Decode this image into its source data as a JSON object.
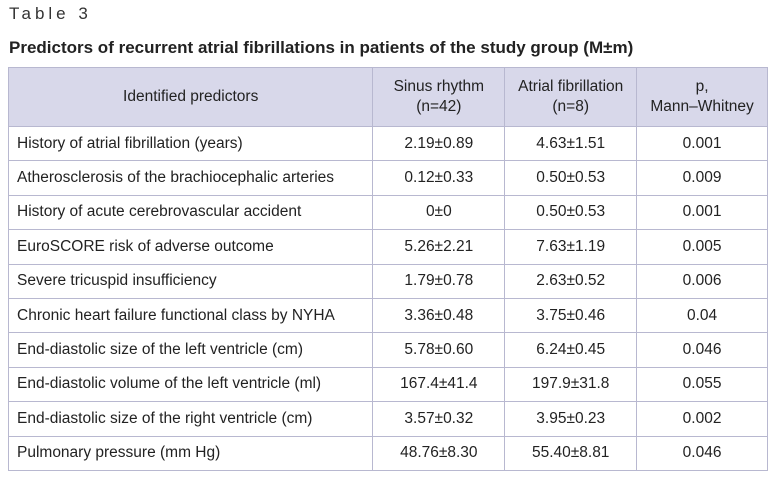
{
  "header": {
    "label": "Table 3",
    "title": "Predictors of recurrent atrial fibrillations in patients of the study group (M±m)"
  },
  "table": {
    "columns": [
      [
        "Identified predictors"
      ],
      [
        "Sinus rhythm",
        "(n=42)"
      ],
      [
        "Atrial fibrillation",
        "(n=8)"
      ],
      [
        "p,",
        "Mann–Whitney"
      ]
    ],
    "rows": [
      [
        "History of atrial fibrillation (years)",
        "2.19±0.89",
        "4.63±1.51",
        "0.001"
      ],
      [
        "Atherosclerosis of the brachiocephalic arteries",
        "0.12±0.33",
        "0.50±0.53",
        "0.009"
      ],
      [
        "History of acute cerebrovascular accident",
        "0±0",
        "0.50±0.53",
        "0.001"
      ],
      [
        "EuroSCORE risk of adverse outcome",
        "5.26±2.21",
        "7.63±1.19",
        "0.005"
      ],
      [
        "Severe tricuspid insufficiency",
        "1.79±0.78",
        "2.63±0.52",
        "0.006"
      ],
      [
        "Chronic heart failure functional class by NYHA",
        "3.36±0.48",
        "3.75±0.46",
        "0.04"
      ],
      [
        "End-diastolic size of the left ventricle (cm)",
        "5.78±0.60",
        "6.24±0.45",
        "0.046"
      ],
      [
        "End-diastolic volume of the left ventricle (ml)",
        "167.4±41.4",
        "197.9±31.8",
        "0.055"
      ],
      [
        "End-diastolic size of the right ventricle (cm)",
        "3.57±0.32",
        "3.95±0.23",
        "0.002"
      ],
      [
        "Pulmonary pressure (mm Hg)",
        "48.76±8.30",
        "55.40±8.81",
        "0.046"
      ]
    ]
  }
}
